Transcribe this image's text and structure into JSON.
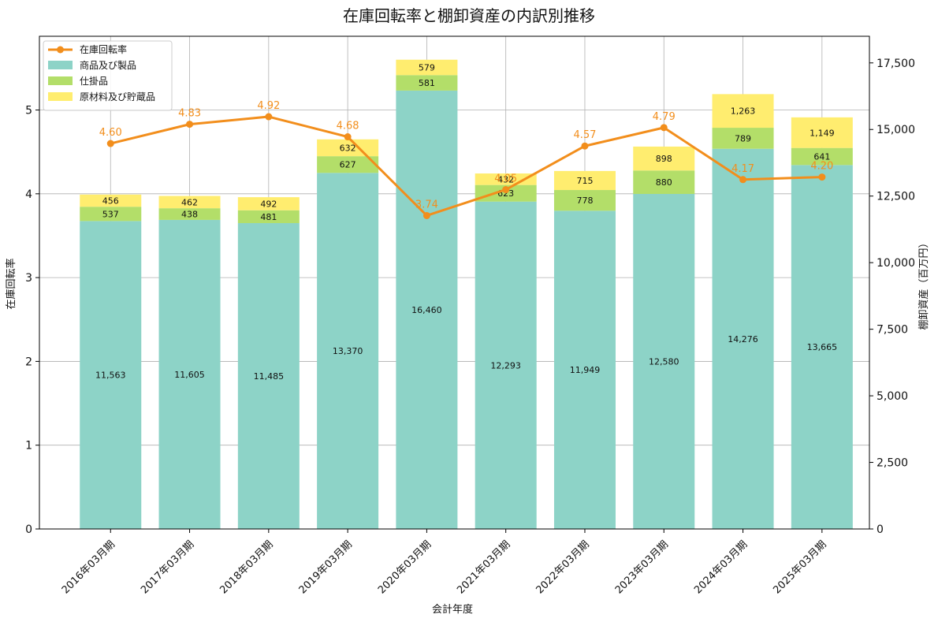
{
  "chart_data": {
    "type": "bar+line",
    "title": "在庫回転率と棚卸資産の内訳別推移",
    "xlabel": "会計年度",
    "ylabel_left": "在庫回転率",
    "ylabel_right": "棚卸資産（百万円）",
    "categories": [
      "2016年03月期",
      "2017年03月期",
      "2018年03月期",
      "2019年03月期",
      "2020年03月期",
      "2021年03月期",
      "2022年03月期",
      "2023年03月期",
      "2024年03月期",
      "2025年03月期"
    ],
    "series": [
      {
        "name": "商品及び製品",
        "axis": "right",
        "kind": "stacked-bar",
        "color": "#8dd3c7",
        "values": [
          11563,
          11605,
          11485,
          13370,
          16460,
          12293,
          11949,
          12580,
          14276,
          13665
        ],
        "labels": [
          "11,563",
          "11,605",
          "11,485",
          "13,370",
          "16,460",
          "12,293",
          "11,949",
          "12,580",
          "14,276",
          "13,665"
        ]
      },
      {
        "name": "仕掛品",
        "axis": "right",
        "kind": "stacked-bar",
        "color": "#b3de69",
        "values": [
          537,
          438,
          481,
          627,
          581,
          623,
          778,
          880,
          789,
          641
        ],
        "labels": [
          "537",
          "438",
          "481",
          "627",
          "581",
          "623",
          "778",
          "880",
          "789",
          "641"
        ]
      },
      {
        "name": "原材料及び貯蔵品",
        "axis": "right",
        "kind": "stacked-bar",
        "color": "#ffed6f",
        "values": [
          456,
          462,
          492,
          632,
          579,
          432,
          715,
          898,
          1263,
          1149
        ],
        "labels": [
          "456",
          "462",
          "492",
          "632",
          "579",
          "432",
          "715",
          "898",
          "1,263",
          "1,149"
        ]
      },
      {
        "name": "在庫回転率",
        "axis": "left",
        "kind": "line",
        "color": "#f28e1c",
        "values": [
          4.6,
          4.83,
          4.92,
          4.68,
          3.74,
          4.05,
          4.57,
          4.79,
          4.17,
          4.2
        ],
        "labels": [
          "4.60",
          "4.83",
          "4.92",
          "4.68",
          "3.74",
          "4.05",
          "4.57",
          "4.79",
          "4.17",
          "4.20"
        ]
      }
    ],
    "ylim_left": [
      0,
      5.88
    ],
    "ylim_right": [
      0,
      18500
    ],
    "yticks_left": [
      0,
      1,
      2,
      3,
      4,
      5
    ],
    "yticks_left_labels": [
      "0",
      "1",
      "2",
      "3",
      "4",
      "5"
    ],
    "yticks_right": [
      0,
      2500,
      5000,
      7500,
      10000,
      12500,
      15000,
      17500
    ],
    "yticks_right_labels": [
      "0",
      "2,500",
      "5,000",
      "7,500",
      "10,000",
      "12,500",
      "15,000",
      "17,500"
    ],
    "legend": {
      "position": "top-left",
      "order": [
        "在庫回転率",
        "商品及び製品",
        "仕掛品",
        "原材料及び貯蔵品"
      ]
    },
    "grid": true
  }
}
